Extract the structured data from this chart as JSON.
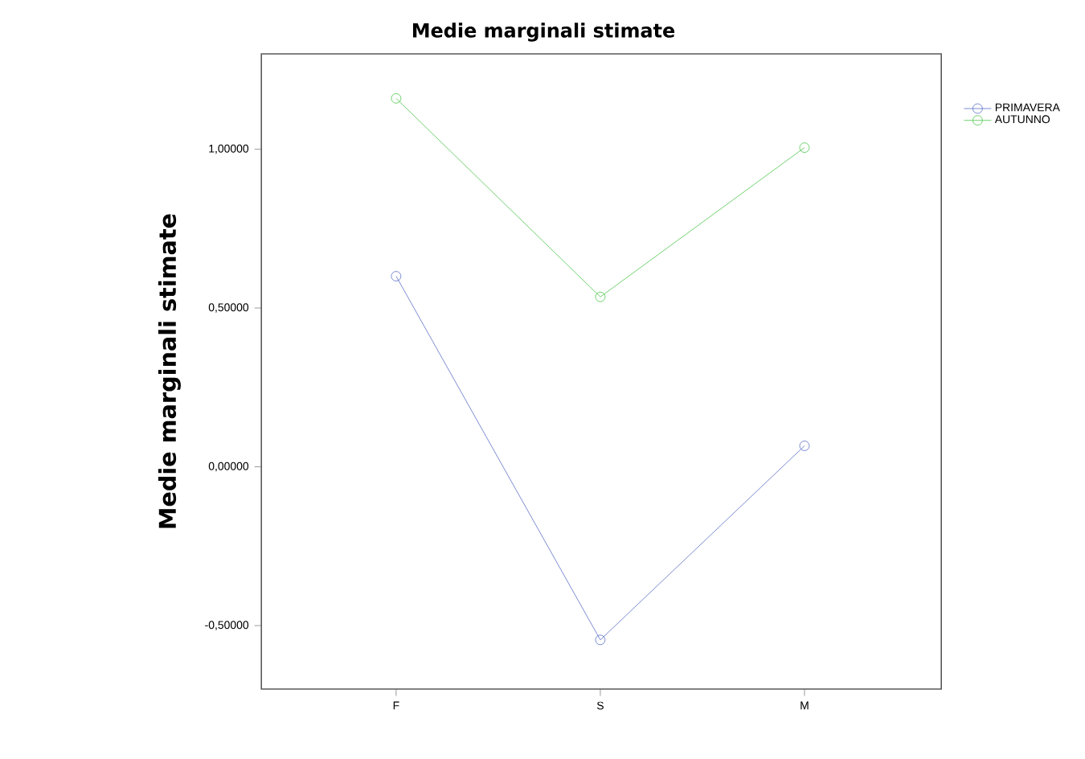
{
  "chart_data": {
    "type": "line",
    "title": "Medie marginali stimate",
    "ylabel": "Medie marginali stimate",
    "categories": [
      "F",
      "S",
      "M"
    ],
    "series": [
      {
        "name": "PRIMAVERA",
        "color": "#5b6fc6",
        "values": [
          0.6,
          -0.545,
          0.066
        ]
      },
      {
        "name": "AUTUNNO",
        "color": "#4cc74c",
        "values": [
          1.16,
          0.535,
          1.005
        ]
      }
    ],
    "ylim": [
      -0.7,
      1.3
    ],
    "yticks": [
      {
        "value": -0.5,
        "label": "-0,50000"
      },
      {
        "value": 0,
        "label": "0,00000"
      },
      {
        "value": 0.5,
        "label": "0,50000"
      },
      {
        "value": 1,
        "label": "1,00000"
      }
    ],
    "marker": "circle",
    "line_style": "solid",
    "legend": "top right",
    "grid": false
  }
}
